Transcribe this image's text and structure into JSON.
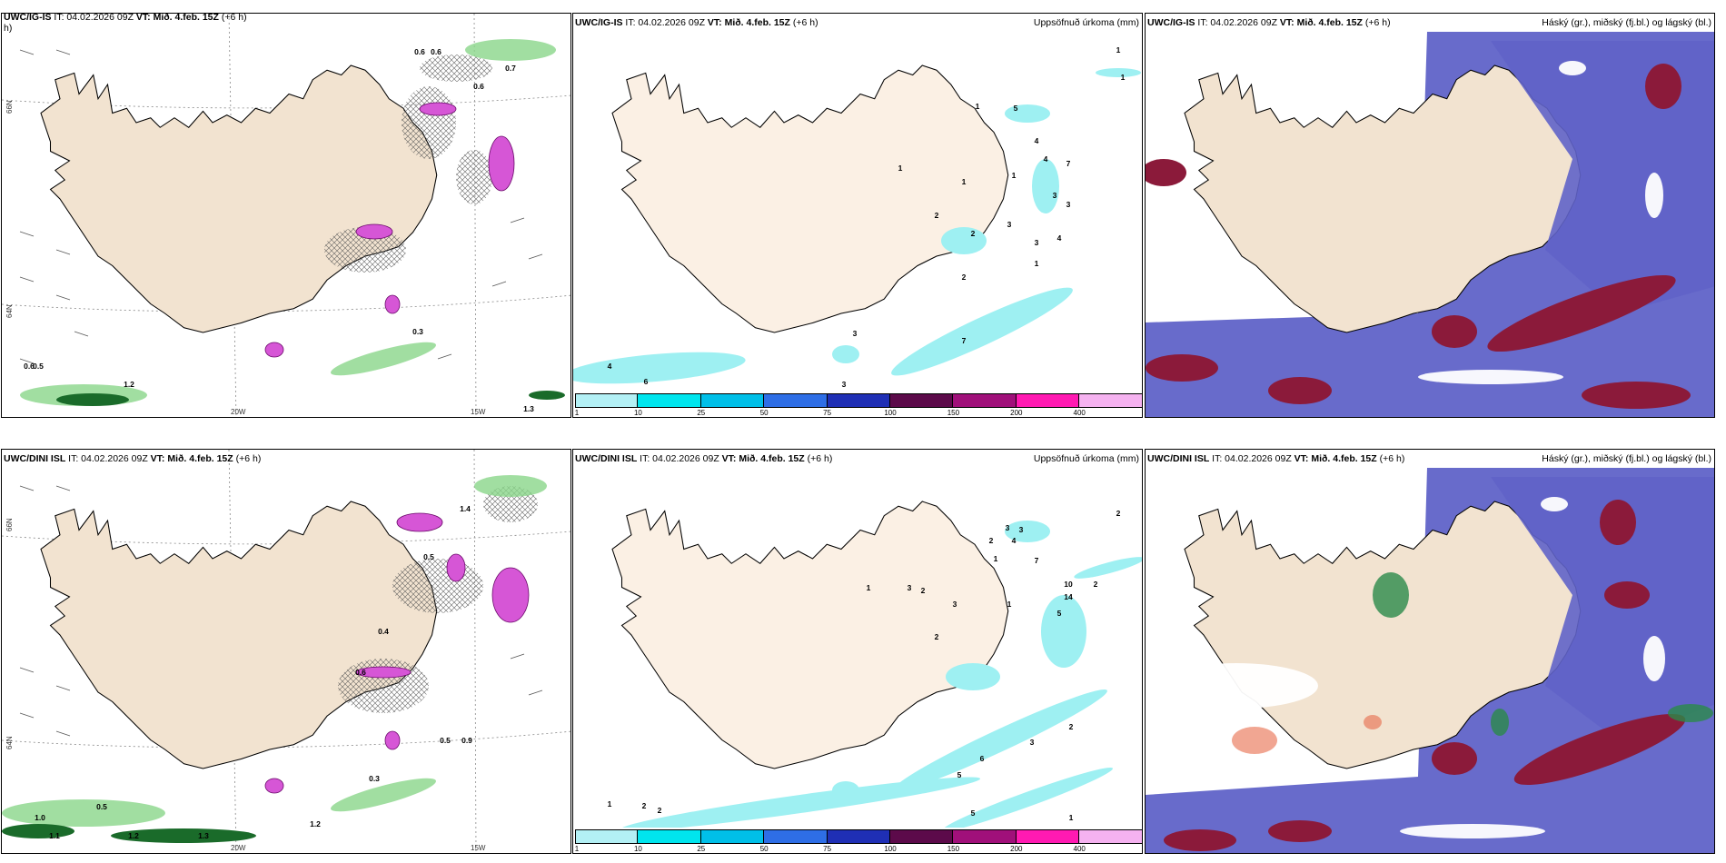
{
  "panels": {
    "p1": {
      "model": "UWC/IG-IS",
      "init": "IT: 04.02.2026 09Z",
      "valid": "VT: Mið. 4.feb. 15Z",
      "lead": "(+6 h)",
      "wrap": "h)",
      "right_title": "",
      "labels": [
        "0.6",
        "0.6",
        "0.7",
        "0.6",
        "0.3",
        "0.6",
        "0.5",
        "1.2",
        "1.3"
      ]
    },
    "p2": {
      "model": "UWC/IG-IS",
      "init": "IT: 04.02.2026 09Z",
      "valid": "VT: Mið. 4.feb. 15Z",
      "lead": "(+6 h)",
      "right_title": "Uppsöfnuð úrkoma (mm)",
      "labels": [
        "1",
        "1",
        "1",
        "5",
        "4",
        "1",
        "4",
        "7",
        "1",
        "1",
        "3",
        "3",
        "2",
        "2",
        "3",
        "3",
        "4",
        "1",
        "2",
        "7",
        "3",
        "4",
        "6",
        "3"
      ]
    },
    "p3": {
      "model": "UWC/IG-IS",
      "init": "IT: 04.02.2026 09Z",
      "valid": "VT: Mið. 4.feb. 15Z",
      "lead": "(+6 h)",
      "right_title": "Háský (gr.), miðský (fj.bl.) og lágský (bl.)"
    },
    "p4": {
      "model": "UWC/DINI ISL",
      "init": "IT: 04.02.2026 09Z",
      "valid": "VT: Mið. 4.feb. 15Z",
      "lead": "(+6 h)",
      "right_title": "",
      "labels": [
        "1.4",
        "0.5",
        "0.4",
        "0.6",
        "0.9",
        "0.5",
        "0.3",
        "0.5",
        "1.0",
        "1.1",
        "1.2",
        "1.3",
        "1.2"
      ]
    },
    "p5": {
      "model": "UWC/DINI ISL",
      "init": "IT: 04.02.2026 09Z",
      "valid": "VT: Mið. 4.feb. 15Z",
      "lead": "(+6 h)",
      "right_title": "Uppsöfnuð úrkoma (mm)",
      "labels": [
        "2",
        "3",
        "3",
        "4",
        "2",
        "1",
        "7",
        "10",
        "14",
        "5",
        "2",
        "3",
        "2",
        "1",
        "1",
        "3",
        "2",
        "6",
        "2",
        "3",
        "5",
        "1",
        "2",
        "2",
        "5",
        "1"
      ]
    },
    "p6": {
      "model": "UWC/DINI ISL",
      "init": "IT: 04.02.2026 09Z",
      "valid": "VT: Mið. 4.feb. 15Z",
      "lead": "(+6 h)",
      "right_title": "Háský (gr.), miðský (fj.bl.) og lágský (bl.)"
    }
  },
  "axis": {
    "lon_20w": "20W",
    "lon_15w": "15W",
    "lat_66n": "66N",
    "lat_64n": "64N"
  },
  "colorbar": {
    "ticks": [
      "1",
      "10",
      "25",
      "50",
      "75",
      "100",
      "150",
      "200",
      "400"
    ],
    "colors": [
      "#b3f0f5",
      "#00e5ee",
      "#00bfe8",
      "#2e6ee6",
      "#1f2fb5",
      "#5c0a4a",
      "#a0107a",
      "#ff1ab2",
      "#f5b2f0"
    ]
  },
  "colors": {
    "land": "#f2e3d0",
    "land_wind": "#ecdcc9",
    "precip": "#9ef0f2",
    "cloud_high": "#6063c8",
    "cloud_low": "#8b1a3a",
    "snow": "#d656d6",
    "green": "#8ad68a",
    "darkgreen": "#1a6b2a"
  }
}
